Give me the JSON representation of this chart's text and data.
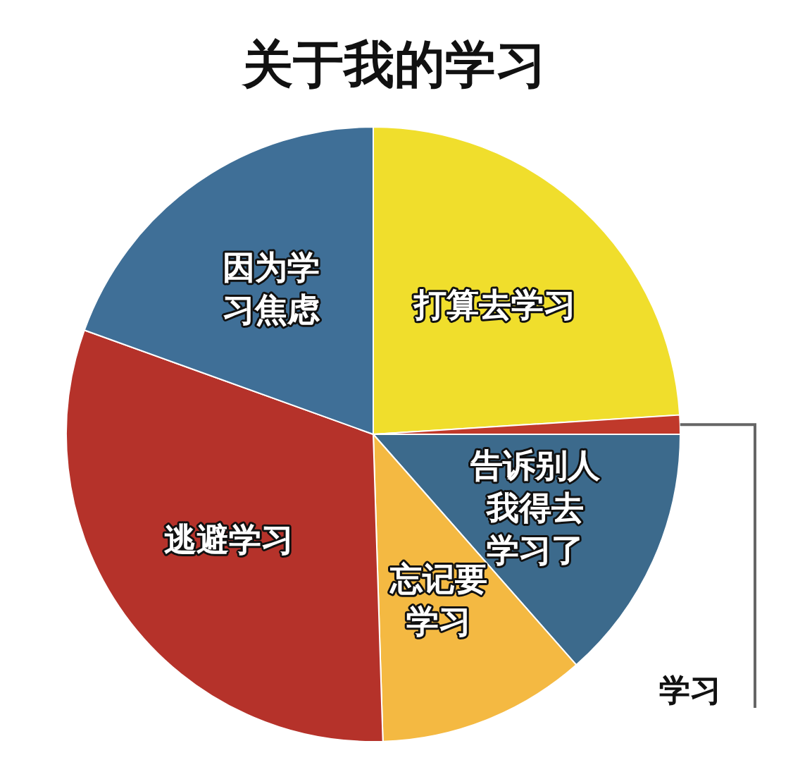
{
  "chart_data": {
    "type": "pie",
    "title": "关于我的学习",
    "categories": [
      "打算去学习",
      "学习",
      "告诉别人我得去学习了",
      "忘记要学习",
      "逃避学习",
      "因为学习焦虑"
    ],
    "values": [
      24,
      1,
      13.5,
      11,
      31,
      19.5
    ],
    "colors": [
      "#f0de2c",
      "#c0392b",
      "#3c6a8c",
      "#f4b942",
      "#b5322a",
      "#3f6f97"
    ]
  }
}
